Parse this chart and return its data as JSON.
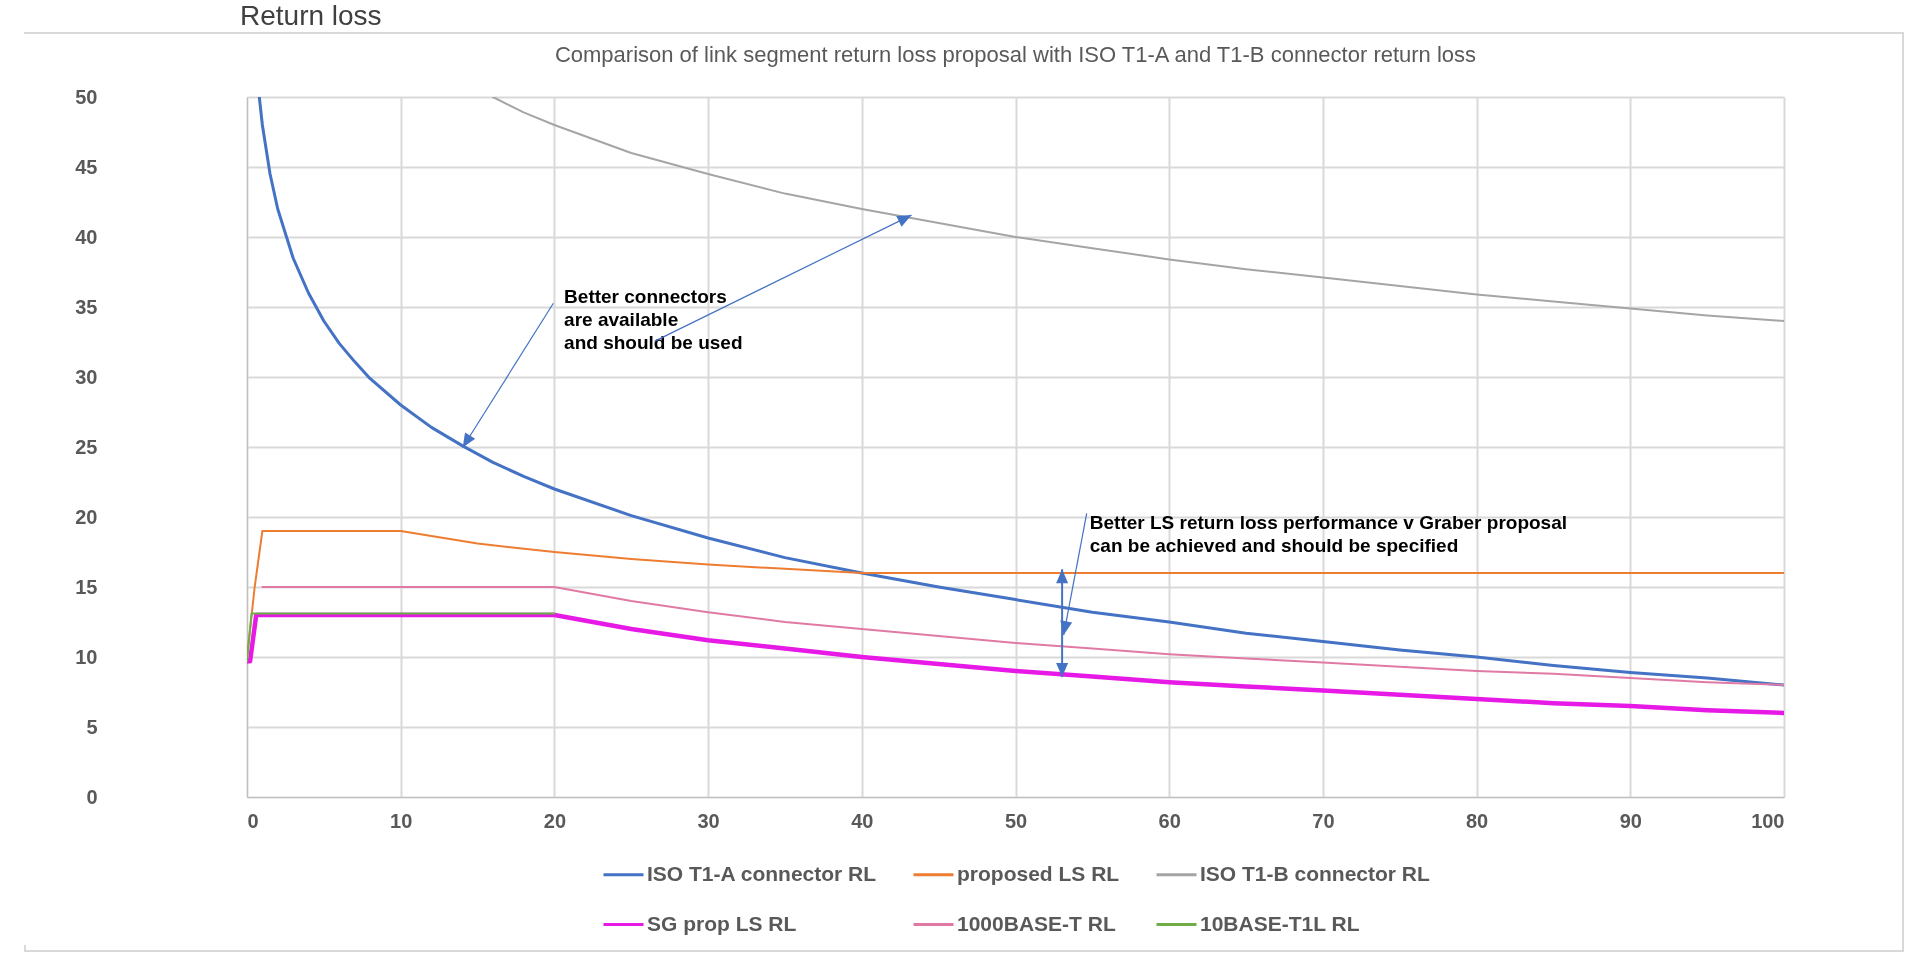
{
  "chart_data": {
    "type": "line",
    "title": "Comparison of link segment return loss proposal with ISO T1-A and T1-B connector return loss",
    "xlim": [
      0,
      100
    ],
    "xticks": [
      0,
      10,
      20,
      30,
      40,
      50,
      60,
      70,
      80,
      90,
      100
    ],
    "ylim": [
      0,
      50
    ],
    "yticks": [
      0,
      5,
      10,
      15,
      20,
      25,
      30,
      35,
      40,
      45,
      50
    ],
    "grid": true,
    "legend": "bottom",
    "line_style": "solid",
    "marker": "none",
    "annotations": [
      "Return loss",
      {
        "text": "Better connectors\nare available\nand should be used",
        "x": 14,
        "y": 25
      },
      "Better LS return loss performance v Graber proposal\ncan be achieved and should be specified"
    ],
    "series": [
      {
        "name": "ISO T1-A connector RL",
        "color": "#4472c4",
        "x": [
          0.8,
          1,
          1.5,
          2,
          3,
          4,
          5,
          6,
          7,
          8,
          10,
          12,
          14,
          16,
          18,
          20,
          25,
          30,
          35,
          40,
          45,
          50,
          55,
          60,
          65,
          70,
          75,
          80,
          85,
          90,
          95,
          100
        ],
        "values": [
          50,
          48,
          44.5,
          42,
          38.5,
          36,
          34,
          32.4,
          31.1,
          29.9,
          28,
          26.4,
          25.1,
          23.9,
          22.9,
          22,
          20.1,
          18.5,
          17.1,
          16,
          15,
          14.1,
          13.2,
          12.5,
          11.7,
          11.1,
          10.5,
          10,
          9.4,
          8.9,
          8.5,
          8
        ]
      },
      {
        "name": "proposed LS RL",
        "color": "#ed7d31",
        "x": [
          0,
          0.5,
          1,
          10,
          15,
          20,
          25,
          30,
          35,
          40,
          50,
          60,
          70,
          80,
          90,
          100
        ],
        "values": [
          10,
          15,
          19,
          19,
          18.1,
          17.5,
          17,
          16.6,
          16.3,
          16,
          16,
          16,
          16,
          16,
          16,
          16
        ]
      },
      {
        "name": "ISO T1-B connector RL",
        "color": "#a5a5a5",
        "x": [
          16,
          18,
          20,
          25,
          30,
          35,
          40,
          45,
          50,
          55,
          60,
          65,
          70,
          75,
          80,
          85,
          90,
          95,
          100
        ],
        "values": [
          50,
          48.9,
          48,
          46,
          44.5,
          43.1,
          42,
          41,
          40,
          39.2,
          38.4,
          37.7,
          37.1,
          36.5,
          35.9,
          35.4,
          34.9,
          34.4,
          34
        ]
      },
      {
        "name": "SG prop LS RL",
        "color": "#e619e6",
        "x": [
          0,
          0.2,
          0.6,
          20,
          25,
          30,
          35,
          40,
          45,
          50,
          55,
          60,
          65,
          70,
          75,
          80,
          85,
          90,
          95,
          100
        ],
        "values": [
          9.7,
          9.7,
          13,
          13,
          12,
          11.2,
          10.6,
          10,
          9.5,
          9,
          8.6,
          8.2,
          7.9,
          7.6,
          7.3,
          7,
          6.7,
          6.5,
          6.2,
          6
        ]
      },
      {
        "name": "1000BASE-T RL",
        "color": "#e07aa5",
        "x": [
          1,
          20,
          25,
          30,
          35,
          40,
          45,
          50,
          55,
          60,
          65,
          70,
          75,
          80,
          85,
          90,
          95,
          100
        ],
        "values": [
          15,
          15,
          14,
          13.2,
          12.5,
          12,
          11.5,
          11,
          10.6,
          10.2,
          9.9,
          9.6,
          9.3,
          9,
          8.8,
          8.5,
          8.2,
          8
        ]
      },
      {
        "name": "10BASE-T1L RL",
        "color": "#70ad47",
        "x": [
          0,
          0.3,
          20
        ],
        "values": [
          9.7,
          13.1,
          13.1
        ]
      }
    ]
  }
}
